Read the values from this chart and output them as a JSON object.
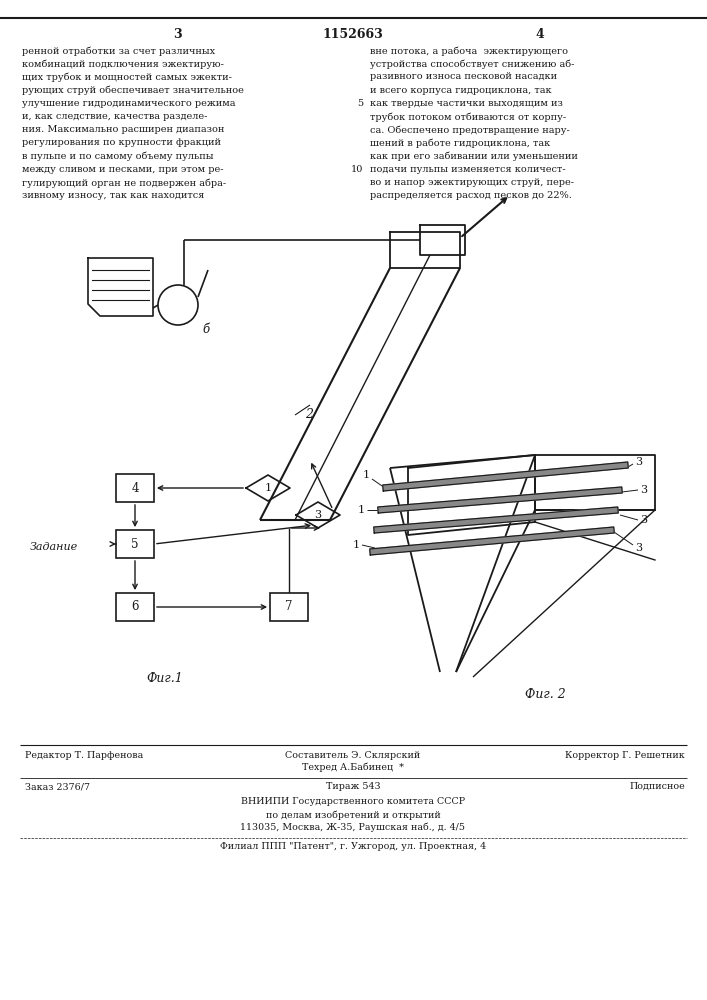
{
  "page_number_left": "3",
  "patent_number": "1152663",
  "page_number_right": "4",
  "col_left_text": [
    "ренной отработки за счет различных",
    "комбинаций подключения эжектирую-",
    "щих трубок и мощностей самых эжекти-",
    "рующих струй обеспечивает значительное",
    "улучшение гидродинамического режима",
    "и, как следствие, качества разделе-",
    "ния. Максимально расширен диапазон",
    "регулирования по крупности фракций",
    "в пульпе и по самому объему пульпы",
    "между сливом и песками, при этом ре-",
    "гулирующий орган не подвержен абра-",
    "зивному износу, так как находится"
  ],
  "col_right_text": [
    "вне потока, а рабочa  эжектирующего",
    "устройства способствует снижению аб-",
    "разивного износа песковой насадки",
    "и всего корпуса гидроциклона, так",
    "как твердые частички выходящим из",
    "трубок потоком отбиваются от корпу-",
    "са. Обеспечено предотвращение нару-",
    "шений в работе гидроциклона, так",
    "как при его забивании или уменьшении",
    "подачи пульпы изменяется количест-",
    "во и напор эжектирующих струй, пере-",
    "распределяется расход песков до 22%."
  ],
  "fig1_label": "Фиг.1",
  "fig2_label": "Фиг. 2",
  "zadanie_label": "Задание",
  "label_b": "б",
  "label_2": "2",
  "footer_line1_left": "Редактор Т. Парфенова",
  "footer_line1_center": "Составитель Э. Склярский",
  "footer_line2_center": "Техред А.Бабинец  *",
  "footer_line1_right": "Корректор Г. Решетник",
  "footer_line2_left": "Заказ 2376/7",
  "footer_line2_center2": "Тираж 543",
  "footer_line2_right": "Подписное",
  "footer_line3": "ВНИИПИ Государственного комитета СССР",
  "footer_line4": "по делам изобретений и открытий",
  "footer_line5": "113035, Москва, Ж-35, Раушская наб., д. 4/5",
  "footer_line6": "Филиал ППП \"Патент\", г. Ужгород, ул. Проектная, 4",
  "bg_color": "#ffffff",
  "text_color": "#1a1a1a"
}
